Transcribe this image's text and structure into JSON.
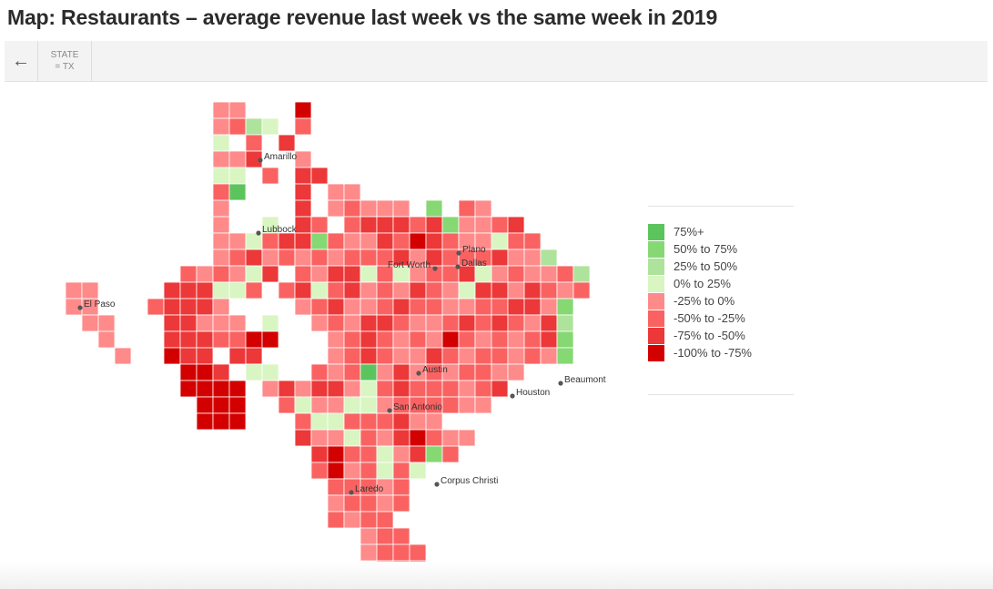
{
  "title": "Map: Restaurants – average revenue last week vs the same week in 2019",
  "toolbar": {
    "back_icon": "arrow-left-icon",
    "filter": {
      "label": "STATE",
      "value": "= TX"
    }
  },
  "legend": [
    {
      "label": "75%+",
      "color": "#5cc45c"
    },
    {
      "label": "50% to 75%",
      "color": "#86d873"
    },
    {
      "label": "25% to 50%",
      "color": "#aee39b"
    },
    {
      "label": "0% to 25%",
      "color": "#d9f5c2"
    },
    {
      "label": "-25% to 0%",
      "color": "#ff8a8a"
    },
    {
      "label": "-50% to -25%",
      "color": "#fa6262"
    },
    {
      "label": "-75% to -50%",
      "color": "#ec3838"
    },
    {
      "label": "-100% to -75%",
      "color": "#d30000"
    }
  ],
  "cities": [
    "Amarillo",
    "Lubbock",
    "El Paso",
    "Fort Worth",
    "Plano",
    "Dallas",
    "Austin",
    "San Antonio",
    "Houston",
    "Beaumont",
    "Laredo",
    "Corpus Christi"
  ],
  "county_categories": [
    ".........44...7",
    ".........4523.5",
    ".........3.5.6",
    ".........446..4",
    ".........33.5.66",
    ".........50...6.44",
    ".........4....6.45444.1.54",
    ".........4..3.65.56665614456",
    ".........44356615446576544355",
    ".........456454545556465556442",
    ".......545436.546635345563454452",
    "44....666335.5635645465436646545",
    "44...56664....45644565544556641",
    ".44...66444.3..4546654456565462",
    "..4...6665577...456545475454561",
    "...4..766.66....456544654554541",
    ".......776.33..5450464545544",
    ".......7777.464664356555456",
    "........777..5344334555544",
    "........777...533555644",
    "..............64435467544",
    "...............675534615",
    "...............5745353",
    "................55545",
    "................45545",
    "................5455",
    "..................455",
    "..................4555",
    "...................455"
  ]
}
